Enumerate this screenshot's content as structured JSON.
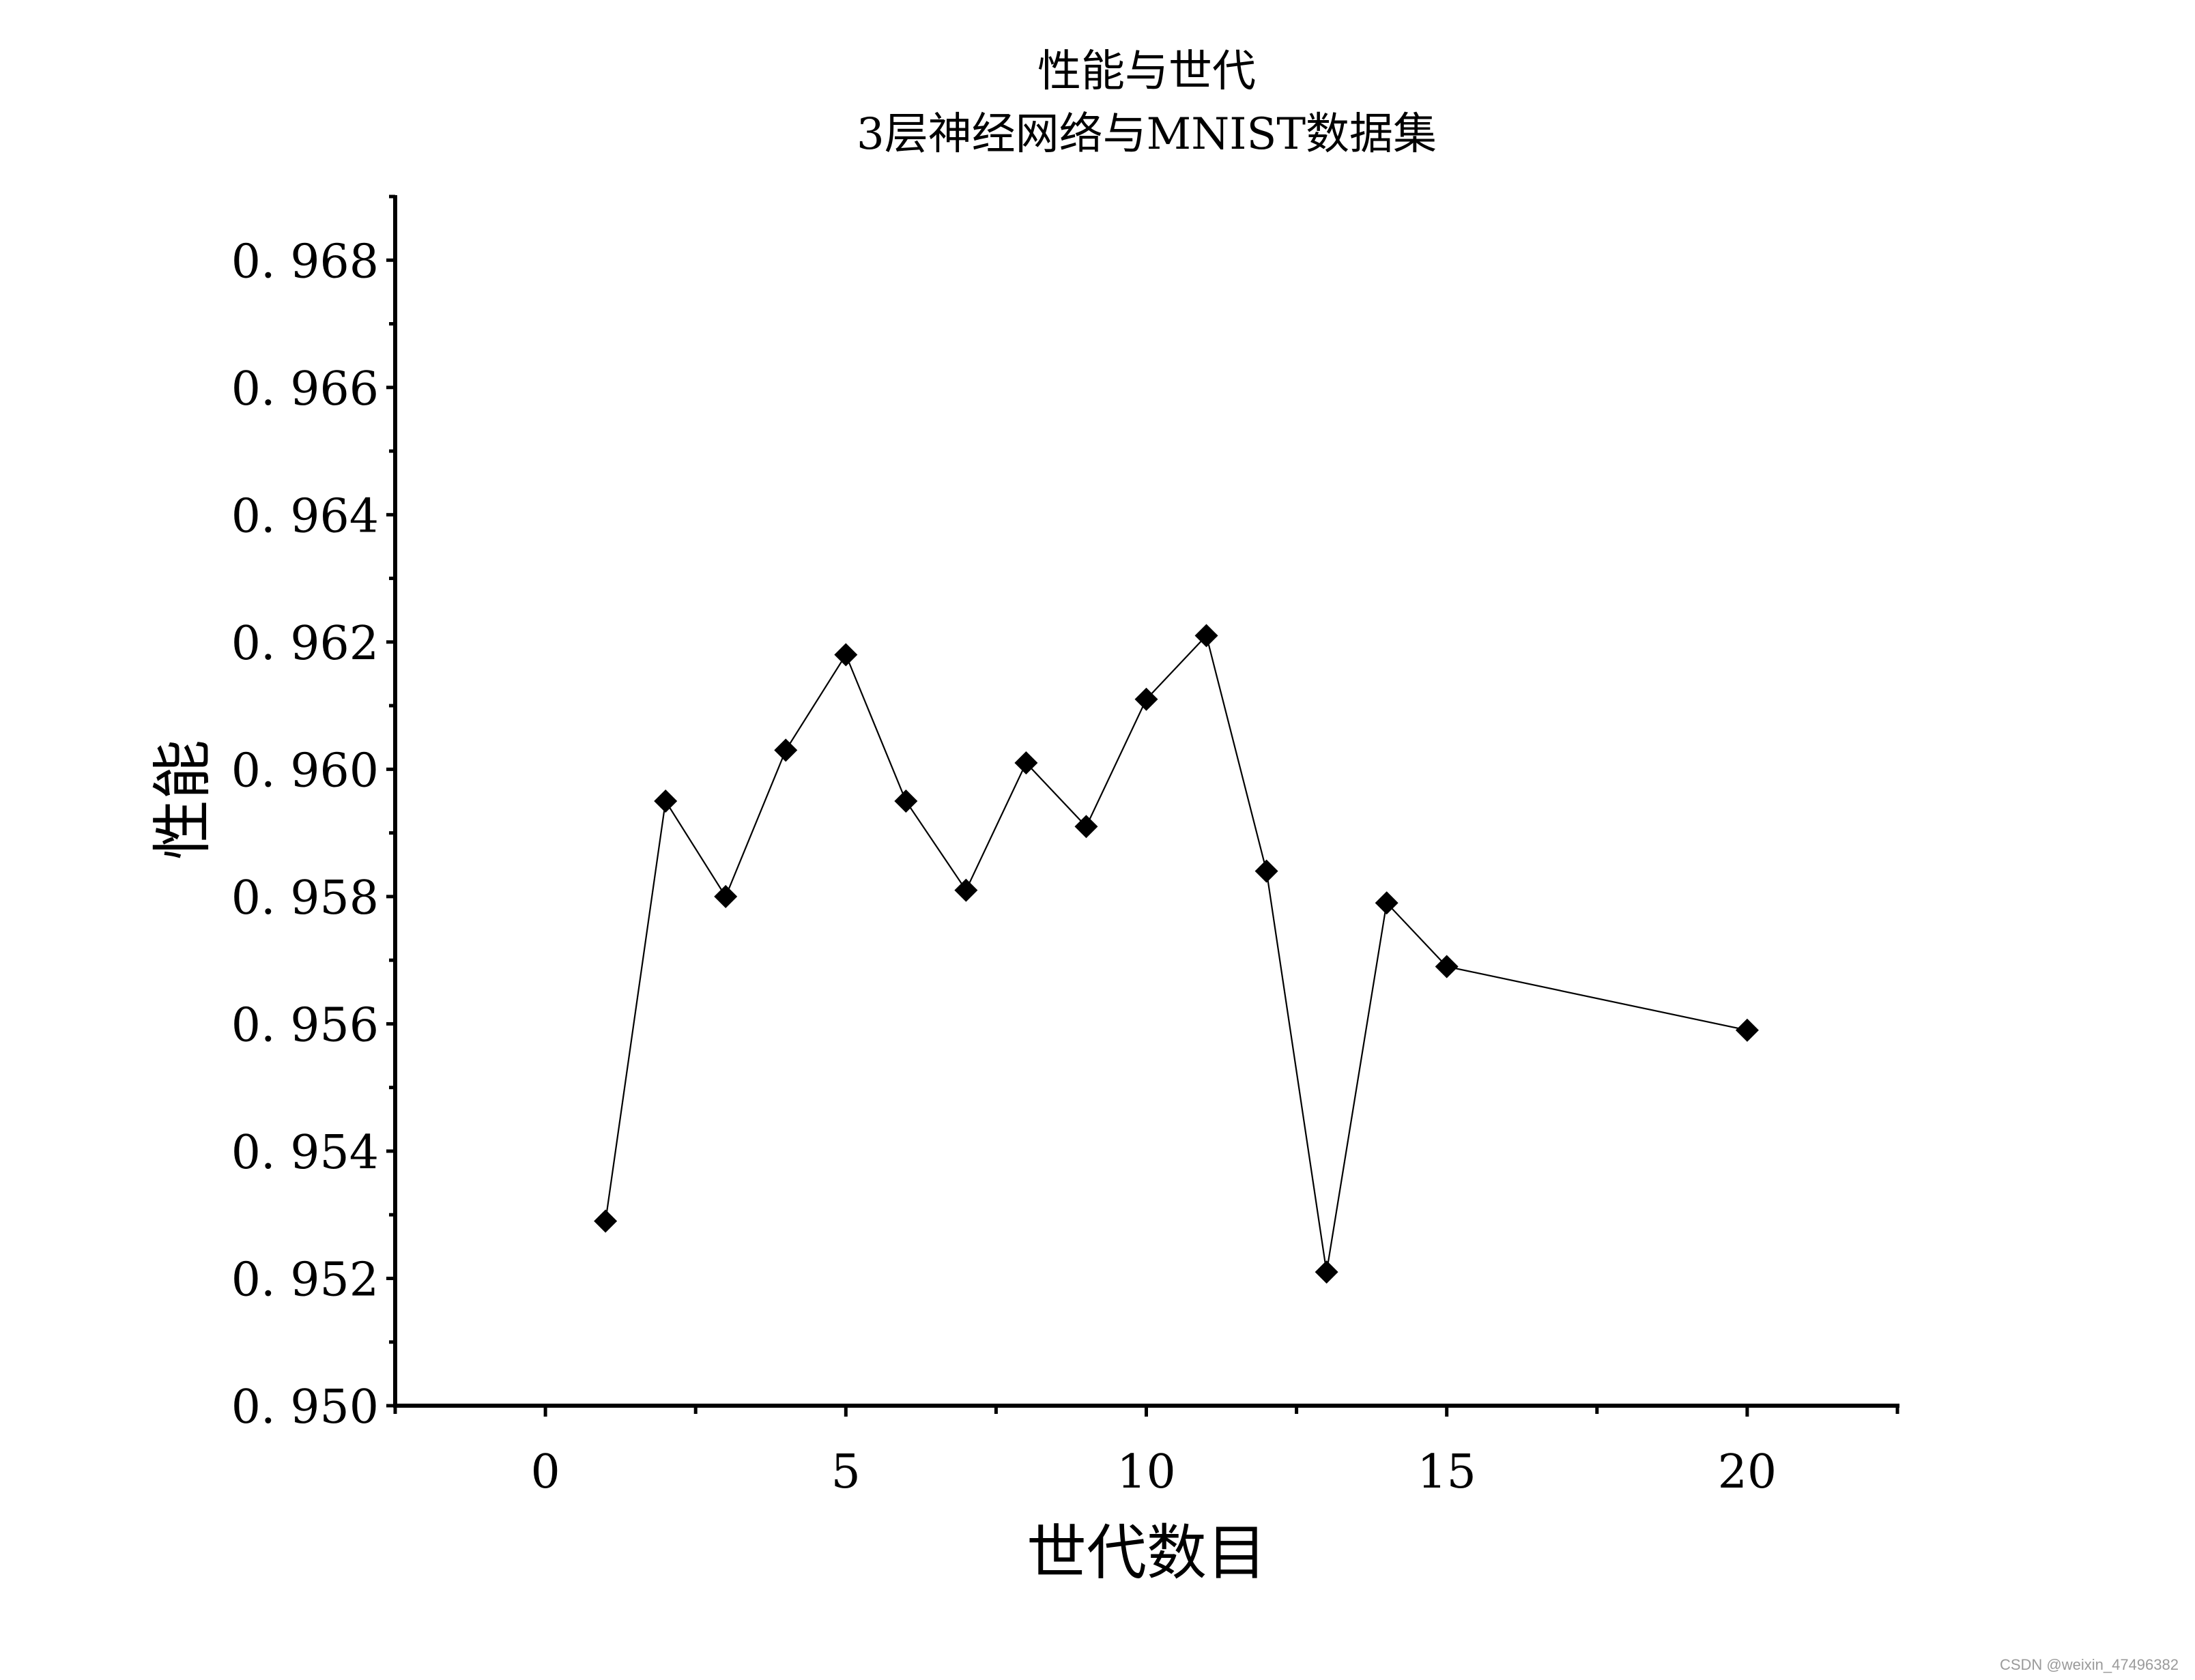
{
  "chart_data": {
    "type": "line",
    "title": "性能与世代",
    "subtitle": "3层神经网络与MNIST数据集",
    "xlabel": "世代数目",
    "ylabel": "性能",
    "xlim": [
      -2.5,
      22.5
    ],
    "ylim": [
      0.95,
      0.969
    ],
    "x_ticks": [
      0,
      5,
      10,
      15,
      20
    ],
    "x_tick_labels": [
      "0",
      "5",
      "10",
      "15",
      "20"
    ],
    "y_ticks": [
      0.95,
      0.952,
      0.954,
      0.956,
      0.958,
      0.96,
      0.962,
      0.964,
      0.966,
      0.968
    ],
    "y_tick_labels": [
      "0. 950",
      "0. 952",
      "0. 954",
      "0. 956",
      "0. 958",
      "0. 960",
      "0. 962",
      "0. 964",
      "0. 966",
      "0. 968"
    ],
    "grid": false,
    "marker": "diamond",
    "line_color": "#000000",
    "marker_color": "#000000",
    "series": [
      {
        "x": [
          1,
          2,
          3,
          4,
          5,
          6,
          7,
          8,
          9,
          10,
          11,
          12,
          13,
          14,
          15,
          20
        ],
        "y": [
          0.9529,
          0.9595,
          0.958,
          0.9603,
          0.9618,
          0.9595,
          0.9581,
          0.9601,
          0.9591,
          0.9611,
          0.9621,
          0.9584,
          0.9521,
          0.9579,
          0.9569,
          0.9559
        ]
      }
    ]
  },
  "watermark": "CSDN @weixin_47496382"
}
